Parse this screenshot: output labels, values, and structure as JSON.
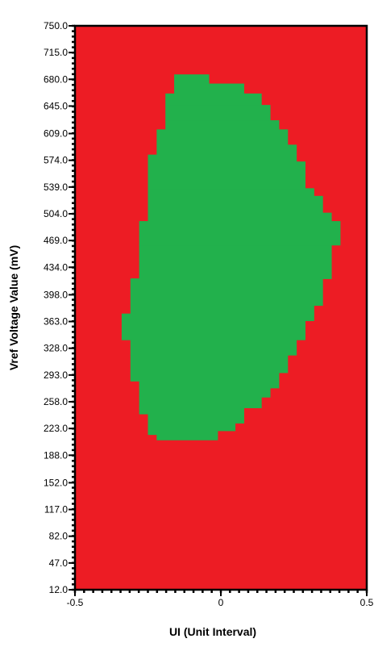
{
  "chart_data": {
    "type": "heatmap",
    "title": "",
    "xlabel": "UI (Unit Interval)",
    "ylabel": "Vref Voltage Value (mV)",
    "xlim": [
      -0.5,
      0.5
    ],
    "ylim": [
      12.0,
      750.0
    ],
    "x_tick_labels": [
      "-0.5",
      "0",
      "0.5"
    ],
    "x_ticks": [
      -0.5,
      0,
      0.5
    ],
    "y_tick_labels": [
      "12.0",
      "47.0",
      "82.0",
      "117.0",
      "152.0",
      "188.0",
      "223.0",
      "258.0",
      "293.0",
      "328.0",
      "363.0",
      "398.0",
      "434.0",
      "469.0",
      "504.0",
      "539.0",
      "574.0",
      "609.0",
      "645.0",
      "680.0",
      "715.0",
      "750.0"
    ],
    "y_ticks": [
      12.0,
      47.0,
      82.0,
      117.0,
      152.0,
      188.0,
      223.0,
      258.0,
      293.0,
      328.0,
      363.0,
      398.0,
      434.0,
      469.0,
      504.0,
      539.0,
      574.0,
      609.0,
      645.0,
      680.0,
      715.0,
      750.0
    ],
    "colors": {
      "fail": "#ed1c24",
      "pass": "#22b14c"
    },
    "pass_region_rows": [
      {
        "y": [
          208.0,
          215.0
        ],
        "x": [
          -0.22,
          -0.01
        ]
      },
      {
        "y": [
          215.0,
          220.0
        ],
        "x": [
          -0.25,
          -0.01
        ]
      },
      {
        "y": [
          220.0,
          230.0
        ],
        "x": [
          -0.25,
          0.05
        ]
      },
      {
        "y": [
          230.0,
          242.0
        ],
        "x": [
          -0.25,
          0.08
        ]
      },
      {
        "y": [
          242.0,
          250.0
        ],
        "x": [
          -0.28,
          0.08
        ]
      },
      {
        "y": [
          250.0,
          264.0
        ],
        "x": [
          -0.28,
          0.14
        ]
      },
      {
        "y": [
          264.0,
          276.0
        ],
        "x": [
          -0.28,
          0.17
        ]
      },
      {
        "y": [
          276.0,
          285.0
        ],
        "x": [
          -0.28,
          0.2
        ]
      },
      {
        "y": [
          285.0,
          296.0
        ],
        "x": [
          -0.31,
          0.2
        ]
      },
      {
        "y": [
          296.0,
          319.0
        ],
        "x": [
          -0.31,
          0.23
        ]
      },
      {
        "y": [
          319.0,
          339.0
        ],
        "x": [
          -0.31,
          0.26
        ]
      },
      {
        "y": [
          339.0,
          364.0
        ],
        "x": [
          -0.34,
          0.29
        ]
      },
      {
        "y": [
          364.0,
          373.0
        ],
        "x": [
          -0.34,
          0.32
        ]
      },
      {
        "y": [
          373.0,
          384.0
        ],
        "x": [
          -0.31,
          0.32
        ]
      },
      {
        "y": [
          384.0,
          419.0
        ],
        "x": [
          -0.31,
          0.35
        ]
      },
      {
        "y": [
          419.0,
          463.0
        ],
        "x": [
          -0.28,
          0.38
        ]
      },
      {
        "y": [
          463.0,
          494.0
        ],
        "x": [
          -0.28,
          0.41
        ]
      },
      {
        "y": [
          494.0,
          505.0
        ],
        "x": [
          -0.25,
          0.38
        ]
      },
      {
        "y": [
          505.0,
          527.0
        ],
        "x": [
          -0.25,
          0.35
        ]
      },
      {
        "y": [
          527.0,
          537.0
        ],
        "x": [
          -0.25,
          0.32
        ]
      },
      {
        "y": [
          537.0,
          572.0
        ],
        "x": [
          -0.25,
          0.29
        ]
      },
      {
        "y": [
          572.0,
          581.0
        ],
        "x": [
          -0.25,
          0.26
        ]
      },
      {
        "y": [
          581.0,
          594.0
        ],
        "x": [
          -0.22,
          0.26
        ]
      },
      {
        "y": [
          594.0,
          614.0
        ],
        "x": [
          -0.22,
          0.23
        ]
      },
      {
        "y": [
          614.0,
          626.0
        ],
        "x": [
          -0.19,
          0.2
        ]
      },
      {
        "y": [
          626.0,
          646.0
        ],
        "x": [
          -0.19,
          0.17
        ]
      },
      {
        "y": [
          646.0,
          661.0
        ],
        "x": [
          -0.19,
          0.14
        ]
      },
      {
        "y": [
          661.0,
          674.0
        ],
        "x": [
          -0.16,
          0.08
        ]
      },
      {
        "y": [
          674.0,
          686.0
        ],
        "x": [
          -0.16,
          -0.04
        ]
      }
    ]
  }
}
